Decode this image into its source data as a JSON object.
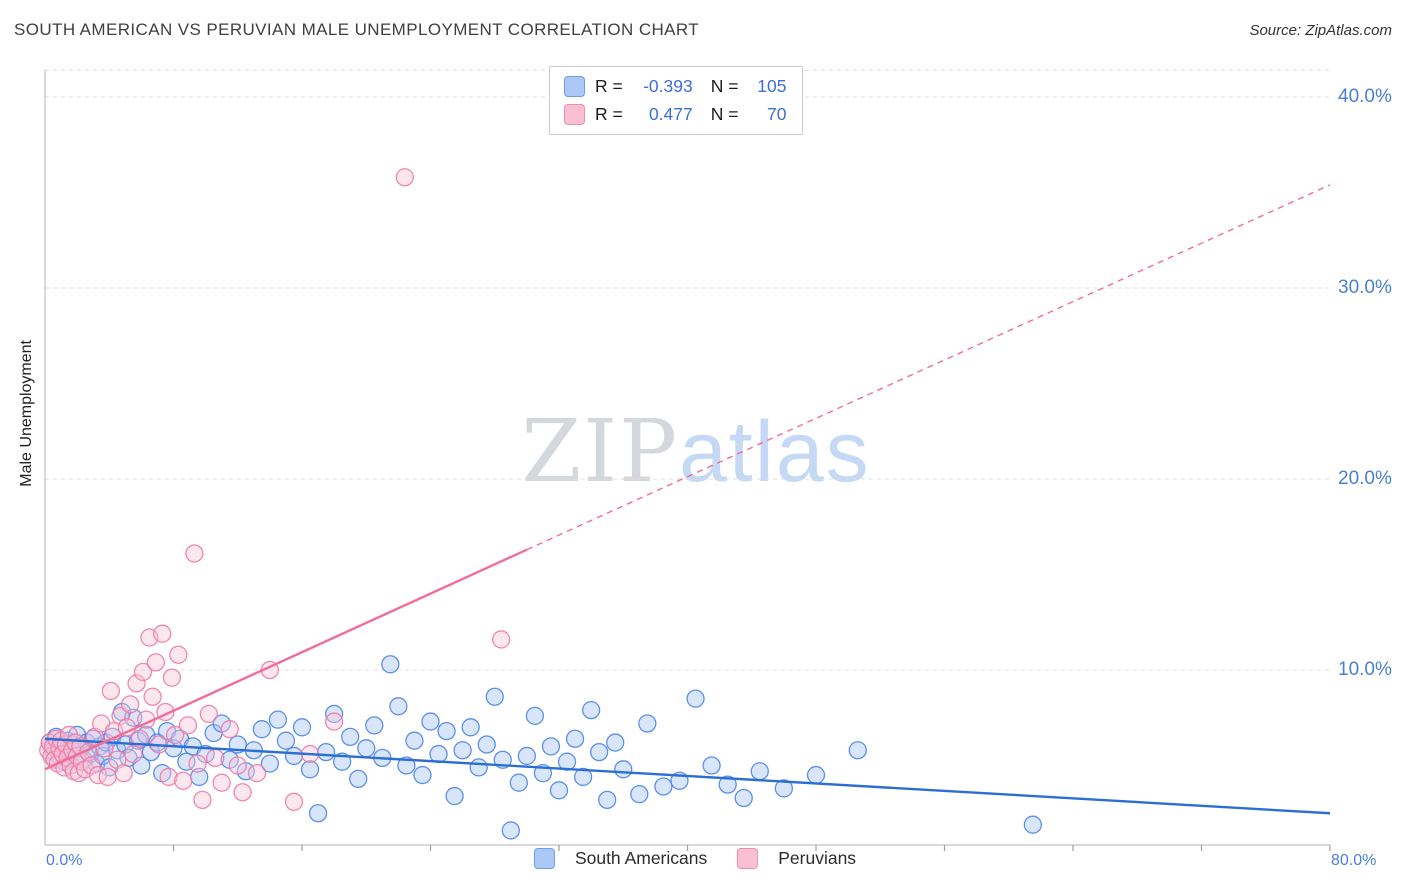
{
  "header": {
    "title": "SOUTH AMERICAN VS PERUVIAN MALE UNEMPLOYMENT CORRELATION CHART",
    "source": "Source: ZipAtlas.com"
  },
  "watermark": {
    "zip": "ZIP",
    "atlas": "atlas"
  },
  "axes": {
    "y_label": "Male Unemployment",
    "x_min": "0.0%",
    "x_max": "80.0%",
    "y_ticks": [
      {
        "label": "40.0%",
        "value": 40
      },
      {
        "label": "30.0%",
        "value": 30
      },
      {
        "label": "20.0%",
        "value": 20
      },
      {
        "label": "10.0%",
        "value": 10
      }
    ]
  },
  "legend_box": {
    "rows": [
      {
        "r_label": "R =",
        "r_value": "-0.393",
        "n_label": "N =",
        "n_value": "105"
      },
      {
        "r_label": "R =",
        "r_value": "0.477",
        "n_label": "N =",
        "n_value": "70"
      }
    ]
  },
  "bottom_legend": {
    "items": [
      {
        "label": "South Americans"
      },
      {
        "label": "Peruvians"
      }
    ]
  },
  "colors": {
    "blue_stroke": "#4a86e8",
    "blue_fill": "#a4c2f4",
    "pink_stroke": "#ee7ba5",
    "pink_fill": "#f9c6d8",
    "trend_blue": "#2b6fd4",
    "trend_pink": "#f06d99",
    "grid": "#dcdcdc",
    "axis_line": "#c0c0c0",
    "tick": "#9e9e9e",
    "axis_text": "#4a7fd4"
  },
  "chart_data": {
    "type": "scatter",
    "title": "SOUTH AMERICAN VS PERUVIAN MALE UNEMPLOYMENT CORRELATION CHART",
    "xlabel": "",
    "ylabel": "Male Unemployment",
    "xlim": [
      0,
      80
    ],
    "ylim": [
      0,
      41.4
    ],
    "grid": true,
    "y_gridlines": [
      10,
      20,
      30,
      40,
      41.4
    ],
    "legend_position": "bottom",
    "series": [
      {
        "name": "South Americans",
        "R": -0.393,
        "N": 105,
        "points": [
          [
            0.3,
            6.2
          ],
          [
            0.5,
            5.8
          ],
          [
            0.7,
            6.5
          ],
          [
            0.9,
            5.5
          ],
          [
            1.0,
            6.0
          ],
          [
            1.2,
            5.2
          ],
          [
            1.4,
            6.3
          ],
          [
            1.5,
            5.7
          ],
          [
            1.7,
            6.1
          ],
          [
            1.9,
            5.4
          ],
          [
            2.0,
            6.6
          ],
          [
            2.2,
            5.9
          ],
          [
            2.4,
            5.3
          ],
          [
            2.6,
            6.2
          ],
          [
            2.8,
            5.6
          ],
          [
            3.0,
            6.4
          ],
          [
            3.2,
            5.1
          ],
          [
            3.4,
            6.0
          ],
          [
            3.6,
            5.5
          ],
          [
            3.8,
            6.2
          ],
          [
            4.0,
            4.9
          ],
          [
            4.2,
            6.5
          ],
          [
            4.5,
            5.8
          ],
          [
            4.8,
            7.8
          ],
          [
            5.0,
            6.1
          ],
          [
            5.2,
            5.4
          ],
          [
            5.5,
            7.5
          ],
          [
            5.8,
            6.3
          ],
          [
            6.0,
            5.0
          ],
          [
            6.3,
            6.6
          ],
          [
            6.6,
            5.7
          ],
          [
            7.0,
            6.2
          ],
          [
            7.3,
            4.6
          ],
          [
            7.6,
            6.8
          ],
          [
            8.0,
            5.9
          ],
          [
            8.4,
            6.4
          ],
          [
            8.8,
            5.2
          ],
          [
            9.2,
            6.0
          ],
          [
            9.6,
            4.4
          ],
          [
            10.0,
            5.6
          ],
          [
            10.5,
            6.7
          ],
          [
            11.0,
            7.2
          ],
          [
            11.5,
            5.3
          ],
          [
            12.0,
            6.1
          ],
          [
            12.5,
            4.7
          ],
          [
            13.0,
            5.8
          ],
          [
            13.5,
            6.9
          ],
          [
            14.0,
            5.1
          ],
          [
            14.5,
            7.4
          ],
          [
            15.0,
            6.3
          ],
          [
            15.5,
            5.5
          ],
          [
            16.0,
            7.0
          ],
          [
            16.5,
            4.8
          ],
          [
            17.0,
            2.5
          ],
          [
            17.5,
            5.7
          ],
          [
            18.0,
            7.7
          ],
          [
            18.5,
            5.2
          ],
          [
            19.0,
            6.5
          ],
          [
            19.5,
            4.3
          ],
          [
            20.0,
            5.9
          ],
          [
            20.5,
            7.1
          ],
          [
            21.0,
            5.4
          ],
          [
            21.5,
            10.3
          ],
          [
            22.0,
            8.1
          ],
          [
            22.5,
            5.0
          ],
          [
            23.0,
            6.3
          ],
          [
            23.5,
            4.5
          ],
          [
            24.0,
            7.3
          ],
          [
            24.5,
            5.6
          ],
          [
            25.0,
            6.8
          ],
          [
            25.5,
            3.4
          ],
          [
            26.0,
            5.8
          ],
          [
            26.5,
            7.0
          ],
          [
            27.0,
            4.9
          ],
          [
            27.5,
            6.1
          ],
          [
            28.0,
            8.6
          ],
          [
            28.5,
            5.3
          ],
          [
            29.0,
            1.6
          ],
          [
            29.5,
            4.1
          ],
          [
            30.0,
            5.5
          ],
          [
            30.5,
            7.6
          ],
          [
            31.0,
            4.6
          ],
          [
            31.5,
            6.0
          ],
          [
            32.0,
            3.7
          ],
          [
            32.5,
            5.2
          ],
          [
            33.0,
            6.4
          ],
          [
            33.5,
            4.4
          ],
          [
            34.0,
            7.9
          ],
          [
            34.5,
            5.7
          ],
          [
            35.0,
            3.2
          ],
          [
            35.5,
            6.2
          ],
          [
            36.0,
            4.8
          ],
          [
            37.0,
            3.5
          ],
          [
            37.5,
            7.2
          ],
          [
            38.5,
            3.9
          ],
          [
            39.5,
            4.2
          ],
          [
            40.5,
            8.5
          ],
          [
            41.5,
            5.0
          ],
          [
            42.5,
            4.0
          ],
          [
            43.5,
            3.3
          ],
          [
            44.5,
            4.7
          ],
          [
            46.0,
            3.8
          ],
          [
            48.0,
            4.5
          ],
          [
            50.6,
            5.8
          ],
          [
            61.5,
            1.9
          ]
        ]
      },
      {
        "name": "Peruvians",
        "R": 0.477,
        "N": 70,
        "points": [
          [
            0.2,
            5.8
          ],
          [
            0.3,
            6.2
          ],
          [
            0.4,
            5.5
          ],
          [
            0.5,
            6.0
          ],
          [
            0.6,
            5.3
          ],
          [
            0.7,
            6.4
          ],
          [
            0.8,
            5.1
          ],
          [
            0.9,
            5.9
          ],
          [
            1.0,
            6.3
          ],
          [
            1.1,
            5.6
          ],
          [
            1.2,
            4.9
          ],
          [
            1.3,
            6.1
          ],
          [
            1.4,
            5.4
          ],
          [
            1.5,
            6.6
          ],
          [
            1.6,
            5.0
          ],
          [
            1.7,
            5.8
          ],
          [
            1.8,
            4.7
          ],
          [
            1.9,
            6.2
          ],
          [
            2.0,
            5.5
          ],
          [
            2.1,
            4.6
          ],
          [
            2.2,
            6.0
          ],
          [
            2.3,
            5.2
          ],
          [
            2.5,
            4.8
          ],
          [
            2.7,
            5.7
          ],
          [
            2.9,
            5.0
          ],
          [
            3.1,
            6.5
          ],
          [
            3.3,
            4.5
          ],
          [
            3.5,
            7.2
          ],
          [
            3.7,
            5.9
          ],
          [
            3.9,
            4.4
          ],
          [
            4.1,
            8.9
          ],
          [
            4.3,
            6.8
          ],
          [
            4.5,
            5.3
          ],
          [
            4.7,
            7.6
          ],
          [
            4.9,
            4.6
          ],
          [
            5.1,
            7.0
          ],
          [
            5.3,
            8.2
          ],
          [
            5.5,
            5.6
          ],
          [
            5.7,
            9.3
          ],
          [
            5.9,
            6.4
          ],
          [
            6.1,
            9.9
          ],
          [
            6.3,
            7.4
          ],
          [
            6.5,
            11.7
          ],
          [
            6.7,
            8.6
          ],
          [
            6.9,
            10.4
          ],
          [
            7.1,
            6.1
          ],
          [
            7.3,
            11.9
          ],
          [
            7.5,
            7.8
          ],
          [
            7.7,
            4.4
          ],
          [
            7.9,
            9.6
          ],
          [
            8.1,
            6.6
          ],
          [
            8.3,
            10.8
          ],
          [
            8.6,
            4.2
          ],
          [
            8.9,
            7.1
          ],
          [
            9.3,
            16.1
          ],
          [
            9.5,
            5.1
          ],
          [
            9.8,
            3.2
          ],
          [
            10.2,
            7.7
          ],
          [
            10.6,
            5.4
          ],
          [
            11.0,
            4.1
          ],
          [
            11.5,
            6.9
          ],
          [
            12.0,
            5.0
          ],
          [
            12.3,
            3.6
          ],
          [
            13.2,
            4.6
          ],
          [
            14.0,
            10.0
          ],
          [
            15.5,
            3.1
          ],
          [
            16.5,
            5.6
          ],
          [
            18.0,
            7.3
          ],
          [
            22.4,
            35.8
          ],
          [
            28.4,
            11.6
          ]
        ]
      }
    ],
    "trendlines": [
      {
        "series": "South Americans",
        "style": "solid",
        "x1": 0,
        "y1": 6.4,
        "x2": 80,
        "y2": 2.5
      },
      {
        "series": "Peruvians",
        "style": "solid",
        "x1": 0,
        "y1": 4.8,
        "x2": 30,
        "y2": 16.3
      },
      {
        "series": "Peruvians",
        "style": "dashed",
        "x1": 30,
        "y1": 16.3,
        "x2": 80,
        "y2": 35.4
      }
    ]
  }
}
